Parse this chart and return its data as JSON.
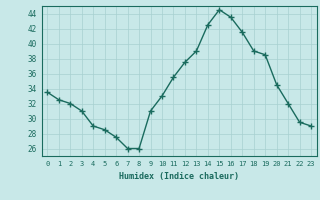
{
  "x": [
    0,
    1,
    2,
    3,
    4,
    5,
    6,
    7,
    8,
    9,
    10,
    11,
    12,
    13,
    14,
    15,
    16,
    17,
    18,
    19,
    20,
    21,
    22,
    23
  ],
  "y": [
    33.5,
    32.5,
    32.0,
    31.0,
    29.0,
    28.5,
    27.5,
    26.0,
    26.0,
    31.0,
    33.0,
    35.5,
    37.5,
    39.0,
    42.5,
    44.5,
    43.5,
    41.5,
    39.0,
    38.5,
    34.5,
    32.0,
    29.5,
    29.0
  ],
  "xlabel": "Humidex (Indice chaleur)",
  "ylabel": "",
  "xlim": [
    -0.5,
    23.5
  ],
  "ylim": [
    25,
    45
  ],
  "yticks": [
    26,
    28,
    30,
    32,
    34,
    36,
    38,
    40,
    42,
    44
  ],
  "xticks": [
    0,
    1,
    2,
    3,
    4,
    5,
    6,
    7,
    8,
    9,
    10,
    11,
    12,
    13,
    14,
    15,
    16,
    17,
    18,
    19,
    20,
    21,
    22,
    23
  ],
  "line_color": "#1a6b5e",
  "marker_color": "#1a6b5e",
  "bg_color": "#c8e8e8",
  "grid_color": "#a8d0d0",
  "text_color": "#1a6b5e",
  "axis_color": "#1a6b5e"
}
